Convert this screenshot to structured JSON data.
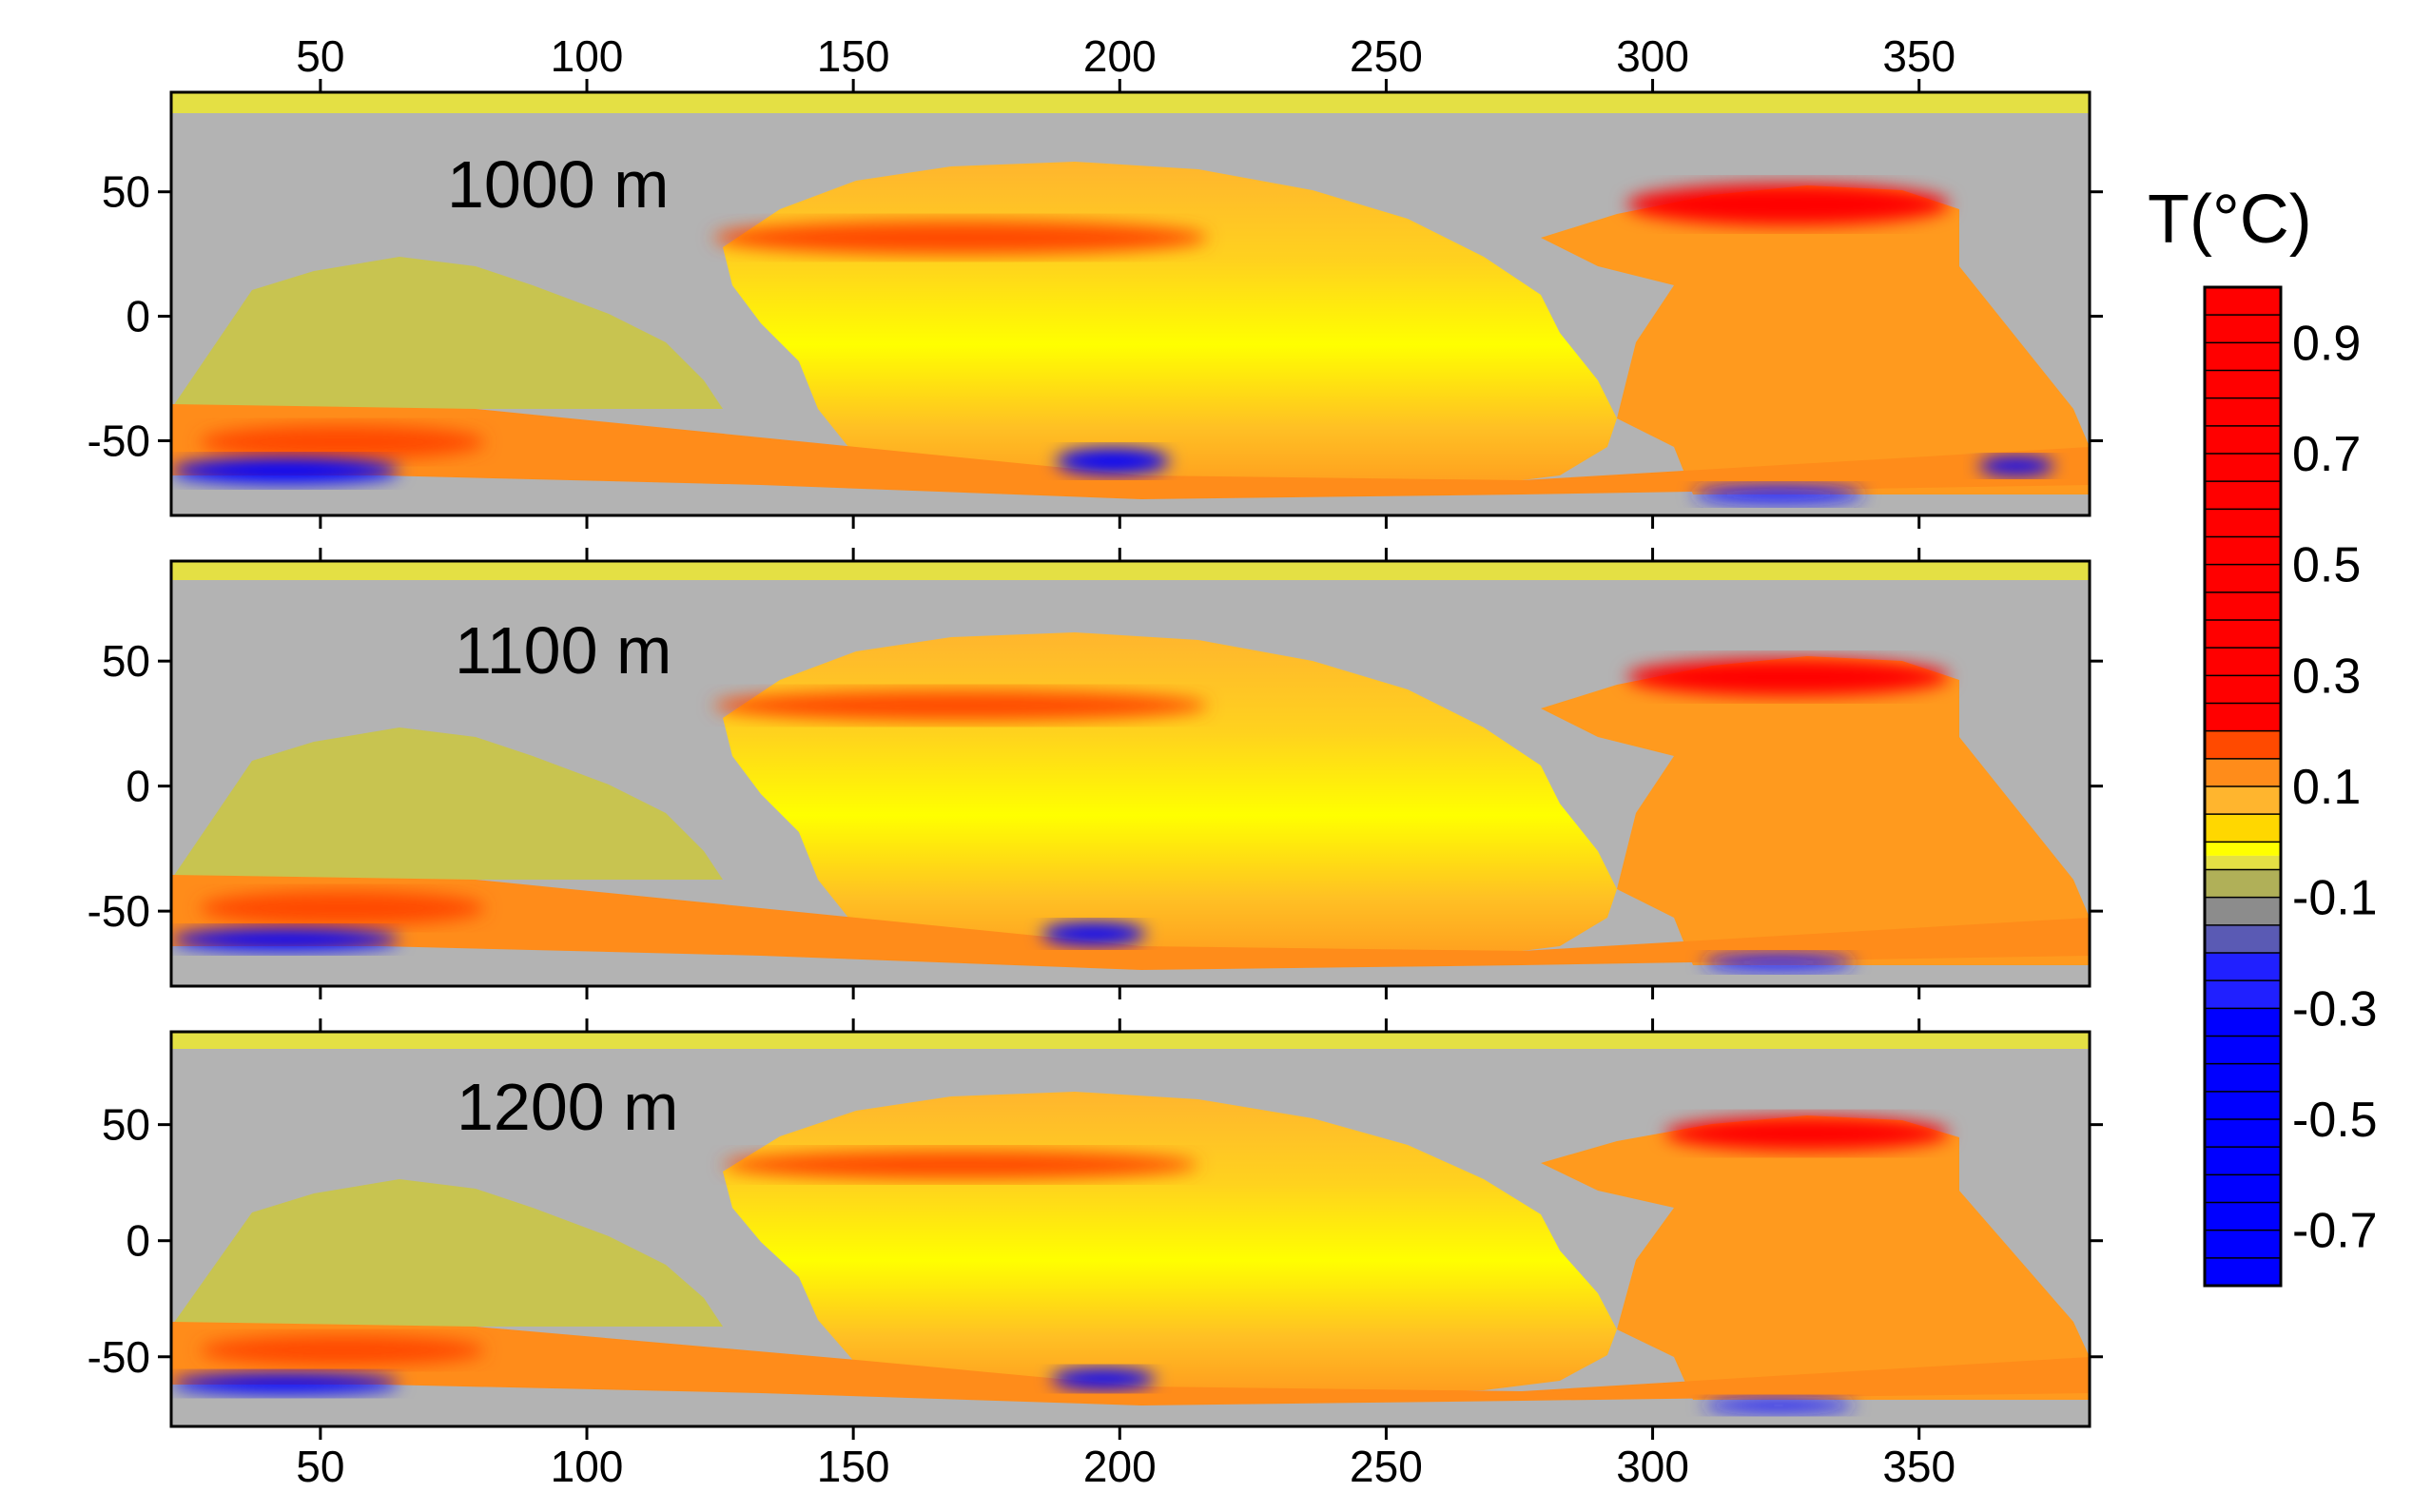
{
  "chart_data": [
    {
      "type": "heatmap",
      "panel_label": "1000 m",
      "x_ticks": [
        50,
        100,
        150,
        200,
        250,
        300,
        350
      ],
      "y_ticks": [
        50,
        0,
        -50
      ],
      "xlim": [
        22,
        382
      ],
      "ylim": [
        -80,
        90
      ]
    },
    {
      "type": "heatmap",
      "panel_label": "1100 m",
      "x_ticks": [
        50,
        100,
        150,
        200,
        250,
        300,
        350
      ],
      "y_ticks": [
        50,
        0,
        -50
      ],
      "xlim": [
        22,
        382
      ],
      "ylim": [
        -80,
        90
      ]
    },
    {
      "type": "heatmap",
      "panel_label": "1200 m",
      "x_ticks": [
        50,
        100,
        150,
        200,
        250,
        300,
        350
      ],
      "y_ticks": [
        50,
        0,
        -50
      ],
      "xlim": [
        22,
        382
      ],
      "ylim": [
        -80,
        90
      ]
    }
  ],
  "colorbar": {
    "title": "T(°C)",
    "min": -0.8,
    "max": 1.0,
    "tick_labels": [
      "0.9",
      "0.7",
      "0.5",
      "0.3",
      "0.1",
      "-0.1",
      "-0.3",
      "-0.5",
      "-0.7"
    ],
    "tick_values": [
      0.9,
      0.7,
      0.5,
      0.3,
      0.1,
      -0.1,
      -0.3,
      -0.5,
      -0.7
    ],
    "colors": {
      "red": "#ff0000",
      "orange_red": "#ff4a00",
      "orange": "#ff8c1a",
      "light_orange": "#ffb52e",
      "gold": "#ffd700",
      "yellow": "#ffff00",
      "pale_yellow": "#e4e044",
      "olive": "#b0b058",
      "grey": "#8c8c8c",
      "slate_blue": "#5a5ab4",
      "blue": "#2020ff",
      "dark_blue": "#0000ff"
    },
    "land_color": "#b3b3b3"
  }
}
